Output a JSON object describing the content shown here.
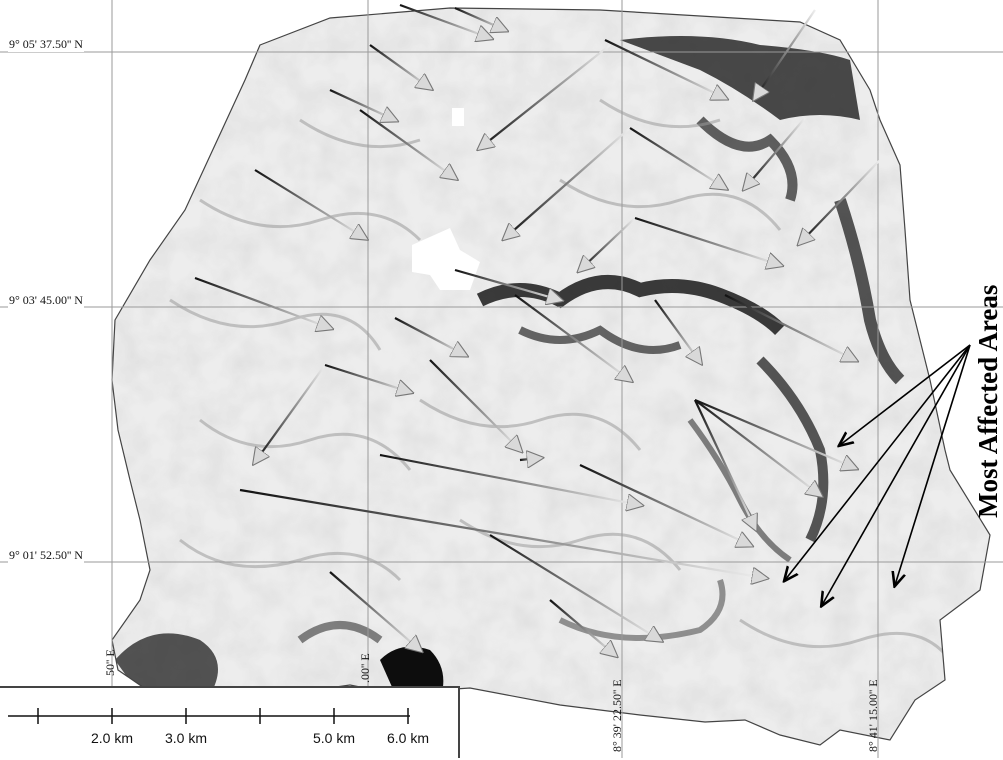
{
  "map": {
    "lat_labels": [
      "9° 05' 37.50'' N",
      "9° 03' 45.00'' N",
      "9° 01' 52.50'' N"
    ],
    "lon_labels": [
      "50'' E",
      ".00'' E",
      "8° 39' 22.50'' E",
      "8° 41' 15.00'' E"
    ],
    "annotation": "Most Affected Areas",
    "scale_bar": {
      "labels": [
        "2.0 km",
        "3.0 km",
        "5.0 km",
        "6.0 km"
      ]
    },
    "colors": {
      "background": "#ffffff",
      "terrain_light": "#f2f2f2",
      "terrain_dark": "#1a1a1a",
      "grid": "#9a9a9a",
      "flow_arrow": "#bfbfbf",
      "annotation_arrow": "#000000"
    }
  }
}
